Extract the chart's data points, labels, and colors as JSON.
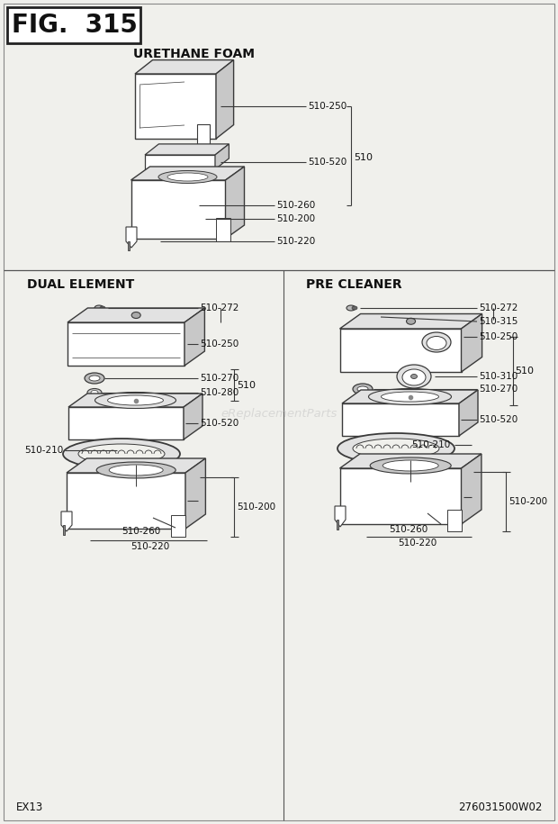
{
  "bg_color": "#f0f0ec",
  "title": "FIG.  315",
  "footer_left": "EX13",
  "footer_right": "276031500W02",
  "watermark": "eReplacementParts",
  "section_uf": "URETHANE FOAM",
  "section_de": "DUAL ELEMENT",
  "section_pc": "PRE CLEANER",
  "lc": "#3a3a3a",
  "oc": "#3a3a3a",
  "fl": "#ffffff",
  "fm": "#e2e2e2",
  "fd": "#c8c8c8"
}
